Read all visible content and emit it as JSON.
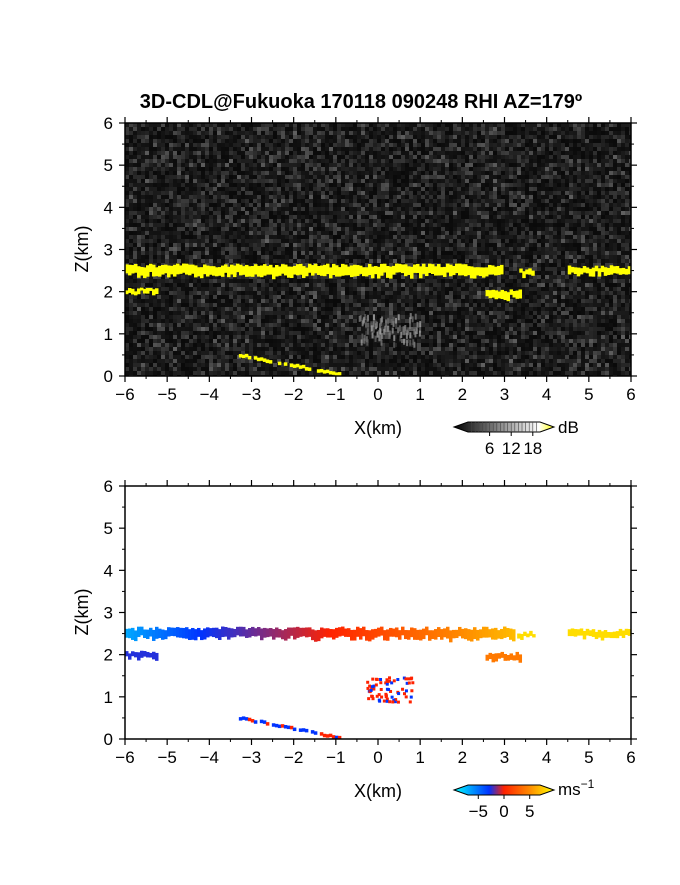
{
  "title": "3D-CDL@Fukuoka 170118 090248 RHI AZ=179º",
  "chart_data": [
    {
      "type": "heatmap",
      "quantity": "backscatter",
      "xlabel": "X(km)",
      "ylabel": "Z(km)",
      "xlim": [
        -6,
        6
      ],
      "ylim": [
        0,
        6
      ],
      "xticks": [
        -6,
        -5,
        -4,
        -3,
        -2,
        -1,
        0,
        1,
        2,
        3,
        4,
        5,
        6
      ],
      "yticks": [
        0,
        1,
        2,
        3,
        4,
        5,
        6
      ],
      "background": "dark grey noise over whole domain",
      "colorbar": {
        "unit": "dB",
        "ticks": [
          6,
          12,
          18
        ],
        "range": [
          0,
          20
        ],
        "colors": [
          "#000000",
          "#ffffff",
          "#ffff00"
        ]
      },
      "features": [
        {
          "kind": "layer",
          "x": [
            -6,
            2.9
          ],
          "z": [
            2.38,
            2.62
          ],
          "value": 20
        },
        {
          "kind": "layer",
          "x": [
            3.35,
            3.7
          ],
          "z": [
            2.4,
            2.52
          ],
          "value": 20
        },
        {
          "kind": "layer",
          "x": [
            4.5,
            6
          ],
          "z": [
            2.4,
            2.58
          ],
          "value": 20
        },
        {
          "kind": "layer",
          "x": [
            -6,
            -5.25
          ],
          "z": [
            1.95,
            2.05
          ],
          "value": 20
        },
        {
          "kind": "layer",
          "x": [
            2.55,
            3.4
          ],
          "z": [
            1.85,
            2.02
          ],
          "value": 20
        },
        {
          "kind": "slant",
          "x": [
            -3.3,
            -0.9
          ],
          "z": [
            0.5,
            0.03
          ],
          "value": 20
        },
        {
          "kind": "faint",
          "x": [
            -0.5,
            1.0
          ],
          "z": [
            0.8,
            1.5
          ],
          "value": 10
        }
      ]
    },
    {
      "type": "heatmap",
      "quantity": "doppler_velocity",
      "xlabel": "X(km)",
      "ylabel": "Z(km)",
      "xlim": [
        -6,
        6
      ],
      "ylim": [
        0,
        6
      ],
      "xticks": [
        -6,
        -5,
        -4,
        -3,
        -2,
        -1,
        0,
        1,
        2,
        3,
        4,
        5,
        6
      ],
      "yticks": [
        0,
        1,
        2,
        3,
        4,
        5,
        6
      ],
      "colorbar": {
        "unit": "ms",
        "unit_exponent": "−1",
        "ticks": [
          -5,
          0,
          5
        ],
        "tick_labels": [
          "−5",
          "0",
          "5"
        ],
        "range": [
          -7,
          7
        ],
        "colors": [
          "#00ffff",
          "#0033ff",
          "#ff2200",
          "#ff8800",
          "#ffff00"
        ]
      },
      "features": [
        {
          "kind": "layer",
          "x": [
            -6,
            3.2
          ],
          "z": [
            2.38,
            2.62
          ],
          "velocity": [
            -5.5,
            5
          ]
        },
        {
          "kind": "layer",
          "x": [
            3.3,
            3.7
          ],
          "z": [
            2.4,
            2.52
          ],
          "velocity": [
            6,
            6
          ]
        },
        {
          "kind": "layer",
          "x": [
            4.5,
            6
          ],
          "z": [
            2.4,
            2.58
          ],
          "velocity": [
            6,
            6
          ]
        },
        {
          "kind": "layer",
          "x": [
            -6,
            -5.25
          ],
          "z": [
            1.9,
            2.05
          ],
          "velocity": [
            -3,
            -3
          ]
        },
        {
          "kind": "layer",
          "x": [
            2.55,
            3.4
          ],
          "z": [
            1.85,
            2.02
          ],
          "velocity": [
            3,
            3
          ]
        },
        {
          "kind": "slant",
          "x": [
            -3.3,
            -0.9
          ],
          "z": [
            0.5,
            0.03
          ],
          "velocity": [
            -1,
            1
          ]
        },
        {
          "kind": "speckle",
          "x": [
            -0.3,
            0.8
          ],
          "z": [
            0.9,
            1.5
          ],
          "velocity": [
            -2,
            2
          ]
        }
      ]
    }
  ]
}
